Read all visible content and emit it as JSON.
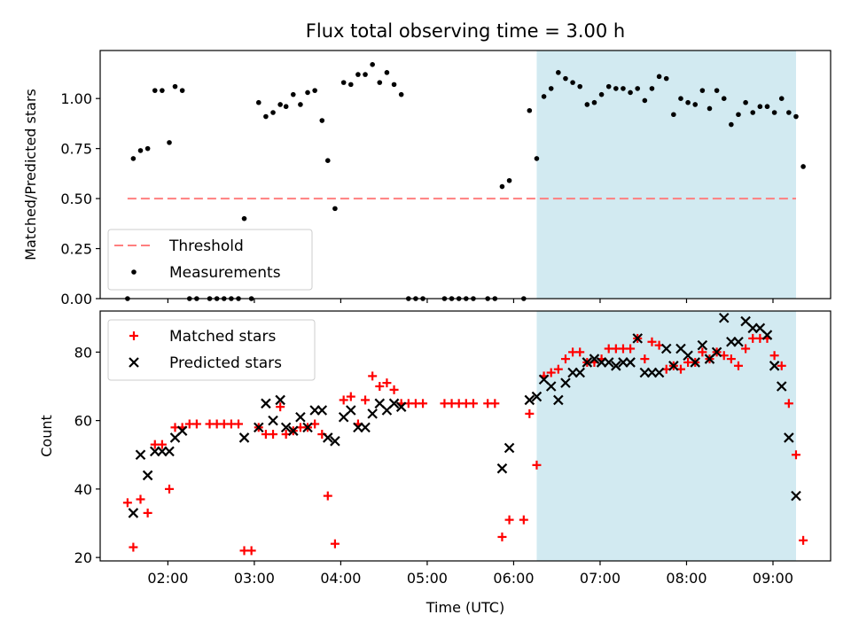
{
  "title": "Flux total observing time = 3.00 h",
  "chart_data": [
    {
      "type": "scatter",
      "ylabel": "Matched/Predicted stars",
      "xlabel": "",
      "xlim": [
        "01:13",
        "09:40"
      ],
      "ylim": [
        0,
        1.24
      ],
      "yticks": [
        0.0,
        0.25,
        0.5,
        0.75,
        1.0
      ],
      "ytick_labels": [
        "0.00",
        "0.25",
        "0.50",
        "0.75",
        "1.00"
      ],
      "shaded_region": {
        "x": [
          "06:16",
          "09:16"
        ],
        "color": "#add8e6"
      },
      "legend": {
        "position": "lower-left",
        "entries": [
          "Threshold",
          "Measurements"
        ]
      },
      "threshold": {
        "name": "Threshold",
        "x": [
          "01:32",
          "09:16"
        ],
        "y": 0.5,
        "color": "#ff8080"
      },
      "series": [
        {
          "name": "Measurements",
          "marker": "dot",
          "color": "#000000",
          "points": [
            [
              "01:32",
              0.0
            ],
            [
              "01:36",
              0.7
            ],
            [
              "01:41",
              0.74
            ],
            [
              "01:46",
              0.75
            ],
            [
              "01:51",
              1.04
            ],
            [
              "01:56",
              1.04
            ],
            [
              "02:01",
              0.78
            ],
            [
              "02:05",
              1.06
            ],
            [
              "02:10",
              1.04
            ],
            [
              "02:15",
              0.0
            ],
            [
              "02:20",
              0.0
            ],
            [
              "02:29",
              0.0
            ],
            [
              "02:34",
              0.0
            ],
            [
              "02:39",
              0.0
            ],
            [
              "02:44",
              0.0
            ],
            [
              "02:49",
              0.0
            ],
            [
              "02:53",
              0.4
            ],
            [
              "02:58",
              0.0
            ],
            [
              "03:03",
              0.98
            ],
            [
              "03:08",
              0.91
            ],
            [
              "03:13",
              0.93
            ],
            [
              "03:18",
              0.97
            ],
            [
              "03:22",
              0.96
            ],
            [
              "03:27",
              1.02
            ],
            [
              "03:32",
              0.97
            ],
            [
              "03:37",
              1.03
            ],
            [
              "03:42",
              1.04
            ],
            [
              "03:47",
              0.89
            ],
            [
              "03:51",
              0.69
            ],
            [
              "03:56",
              0.45
            ],
            [
              "04:02",
              1.08
            ],
            [
              "04:07",
              1.07
            ],
            [
              "04:12",
              1.12
            ],
            [
              "04:17",
              1.12
            ],
            [
              "04:22",
              1.17
            ],
            [
              "04:27",
              1.08
            ],
            [
              "04:32",
              1.13
            ],
            [
              "04:37",
              1.07
            ],
            [
              "04:42",
              1.02
            ],
            [
              "04:47",
              0.0
            ],
            [
              "04:52",
              0.0
            ],
            [
              "04:57",
              0.0
            ],
            [
              "05:12",
              0.0
            ],
            [
              "05:17",
              0.0
            ],
            [
              "05:22",
              0.0
            ],
            [
              "05:27",
              0.0
            ],
            [
              "05:32",
              0.0
            ],
            [
              "05:42",
              0.0
            ],
            [
              "05:47",
              0.0
            ],
            [
              "05:52",
              0.56
            ],
            [
              "05:57",
              0.59
            ],
            [
              "06:07",
              0.0
            ],
            [
              "06:11",
              0.94
            ],
            [
              "06:16",
              0.7
            ],
            [
              "06:21",
              1.01
            ],
            [
              "06:26",
              1.05
            ],
            [
              "06:31",
              1.13
            ],
            [
              "06:36",
              1.1
            ],
            [
              "06:41",
              1.08
            ],
            [
              "06:46",
              1.06
            ],
            [
              "06:51",
              0.97
            ],
            [
              "06:56",
              0.98
            ],
            [
              "07:01",
              1.02
            ],
            [
              "07:06",
              1.06
            ],
            [
              "07:11",
              1.05
            ],
            [
              "07:16",
              1.05
            ],
            [
              "07:21",
              1.03
            ],
            [
              "07:26",
              1.05
            ],
            [
              "07:31",
              0.99
            ],
            [
              "07:36",
              1.05
            ],
            [
              "07:41",
              1.11
            ],
            [
              "07:46",
              1.1
            ],
            [
              "07:51",
              0.92
            ],
            [
              "07:56",
              1.0
            ],
            [
              "08:01",
              0.98
            ],
            [
              "08:06",
              0.97
            ],
            [
              "08:11",
              1.04
            ],
            [
              "08:16",
              0.95
            ],
            [
              "08:21",
              1.04
            ],
            [
              "08:26",
              1.0
            ],
            [
              "08:31",
              0.87
            ],
            [
              "08:36",
              0.92
            ],
            [
              "08:41",
              0.98
            ],
            [
              "08:46",
              0.93
            ],
            [
              "08:51",
              0.96
            ],
            [
              "08:56",
              0.96
            ],
            [
              "09:01",
              0.93
            ],
            [
              "09:06",
              1.0
            ],
            [
              "09:11",
              0.93
            ],
            [
              "09:16",
              0.91
            ],
            [
              "09:21",
              0.66
            ]
          ]
        }
      ]
    },
    {
      "type": "scatter",
      "xlabel": "Time (UTC)",
      "ylabel": "Count",
      "xlim": [
        "01:13",
        "09:40"
      ],
      "ylim": [
        19,
        92
      ],
      "xticks": [
        "02:00",
        "03:00",
        "04:00",
        "05:00",
        "06:00",
        "07:00",
        "08:00",
        "09:00"
      ],
      "yticks": [
        20,
        40,
        60,
        80
      ],
      "ytick_labels": [
        "20",
        "40",
        "60",
        "80"
      ],
      "shaded_region": {
        "x": [
          "06:16",
          "09:16"
        ],
        "color": "#add8e6"
      },
      "legend": {
        "position": "upper-left",
        "entries": [
          "Matched stars",
          "Predicted stars"
        ]
      },
      "series": [
        {
          "name": "Matched stars",
          "marker": "plus",
          "color": "#ff0000",
          "points": [
            [
              "01:32",
              36
            ],
            [
              "01:36",
              23
            ],
            [
              "01:41",
              37
            ],
            [
              "01:46",
              33
            ],
            [
              "01:51",
              53
            ],
            [
              "01:56",
              53
            ],
            [
              "02:01",
              40
            ],
            [
              "02:05",
              58
            ],
            [
              "02:10",
              58
            ],
            [
              "02:15",
              59
            ],
            [
              "02:20",
              59
            ],
            [
              "02:29",
              59
            ],
            [
              "02:34",
              59
            ],
            [
              "02:39",
              59
            ],
            [
              "02:44",
              59
            ],
            [
              "02:49",
              59
            ],
            [
              "02:53",
              22
            ],
            [
              "02:58",
              22
            ],
            [
              "03:03",
              58
            ],
            [
              "03:08",
              56
            ],
            [
              "03:13",
              56
            ],
            [
              "03:18",
              64
            ],
            [
              "03:22",
              56
            ],
            [
              "03:27",
              57
            ],
            [
              "03:32",
              58
            ],
            [
              "03:37",
              58
            ],
            [
              "03:42",
              59
            ],
            [
              "03:47",
              56
            ],
            [
              "03:51",
              38
            ],
            [
              "03:56",
              24
            ],
            [
              "04:02",
              66
            ],
            [
              "04:07",
              67
            ],
            [
              "04:12",
              59
            ],
            [
              "04:17",
              66
            ],
            [
              "04:22",
              73
            ],
            [
              "04:27",
              70
            ],
            [
              "04:32",
              71
            ],
            [
              "04:37",
              69
            ],
            [
              "04:42",
              65
            ],
            [
              "04:47",
              65
            ],
            [
              "04:52",
              65
            ],
            [
              "04:57",
              65
            ],
            [
              "05:12",
              65
            ],
            [
              "05:17",
              65
            ],
            [
              "05:22",
              65
            ],
            [
              "05:27",
              65
            ],
            [
              "05:32",
              65
            ],
            [
              "05:42",
              65
            ],
            [
              "05:47",
              65
            ],
            [
              "05:52",
              26
            ],
            [
              "05:57",
              31
            ],
            [
              "06:07",
              31
            ],
            [
              "06:11",
              62
            ],
            [
              "06:16",
              47
            ],
            [
              "06:21",
              73
            ],
            [
              "06:26",
              74
            ],
            [
              "06:31",
              75
            ],
            [
              "06:36",
              78
            ],
            [
              "06:41",
              80
            ],
            [
              "06:46",
              80
            ],
            [
              "06:51",
              77
            ],
            [
              "06:56",
              77
            ],
            [
              "07:01",
              78
            ],
            [
              "07:06",
              81
            ],
            [
              "07:11",
              81
            ],
            [
              "07:16",
              81
            ],
            [
              "07:21",
              81
            ],
            [
              "07:26",
              84
            ],
            [
              "07:31",
              78
            ],
            [
              "07:36",
              83
            ],
            [
              "07:41",
              82
            ],
            [
              "07:46",
              75
            ],
            [
              "07:51",
              76
            ],
            [
              "07:56",
              75
            ],
            [
              "08:01",
              77
            ],
            [
              "08:06",
              77
            ],
            [
              "08:11",
              80
            ],
            [
              "08:16",
              78
            ],
            [
              "08:21",
              80
            ],
            [
              "08:26",
              79
            ],
            [
              "08:31",
              78
            ],
            [
              "08:36",
              76
            ],
            [
              "08:41",
              81
            ],
            [
              "08:46",
              84
            ],
            [
              "08:51",
              84
            ],
            [
              "08:56",
              84
            ],
            [
              "09:01",
              79
            ],
            [
              "09:06",
              76
            ],
            [
              "09:11",
              65
            ],
            [
              "09:16",
              50
            ],
            [
              "09:21",
              25
            ]
          ]
        },
        {
          "name": "Predicted stars",
          "marker": "x",
          "color": "#000000",
          "points": [
            [
              "01:36",
              33
            ],
            [
              "01:41",
              50
            ],
            [
              "01:46",
              44
            ],
            [
              "01:51",
              51
            ],
            [
              "01:56",
              51
            ],
            [
              "02:01",
              51
            ],
            [
              "02:05",
              55
            ],
            [
              "02:10",
              57
            ],
            [
              "02:53",
              55
            ],
            [
              "03:03",
              58
            ],
            [
              "03:08",
              65
            ],
            [
              "03:13",
              60
            ],
            [
              "03:18",
              66
            ],
            [
              "03:22",
              58
            ],
            [
              "03:27",
              57
            ],
            [
              "03:32",
              61
            ],
            [
              "03:37",
              58
            ],
            [
              "03:42",
              63
            ],
            [
              "03:47",
              63
            ],
            [
              "03:51",
              55
            ],
            [
              "03:56",
              54
            ],
            [
              "04:02",
              61
            ],
            [
              "04:07",
              63
            ],
            [
              "04:12",
              58
            ],
            [
              "04:17",
              58
            ],
            [
              "04:22",
              62
            ],
            [
              "04:27",
              65
            ],
            [
              "04:32",
              63
            ],
            [
              "04:37",
              65
            ],
            [
              "04:42",
              64
            ],
            [
              "05:52",
              46
            ],
            [
              "05:57",
              52
            ],
            [
              "06:11",
              66
            ],
            [
              "06:16",
              67
            ],
            [
              "06:21",
              72
            ],
            [
              "06:26",
              70
            ],
            [
              "06:31",
              66
            ],
            [
              "06:36",
              71
            ],
            [
              "06:41",
              74
            ],
            [
              "06:46",
              74
            ],
            [
              "06:51",
              77
            ],
            [
              "06:56",
              78
            ],
            [
              "07:01",
              77
            ],
            [
              "07:06",
              77
            ],
            [
              "07:11",
              76
            ],
            [
              "07:16",
              77
            ],
            [
              "07:21",
              77
            ],
            [
              "07:26",
              84
            ],
            [
              "07:31",
              74
            ],
            [
              "07:36",
              74
            ],
            [
              "07:41",
              74
            ],
            [
              "07:46",
              81
            ],
            [
              "07:51",
              76
            ],
            [
              "07:56",
              81
            ],
            [
              "08:01",
              79
            ],
            [
              "08:06",
              77
            ],
            [
              "08:11",
              82
            ],
            [
              "08:16",
              78
            ],
            [
              "08:21",
              80
            ],
            [
              "08:26",
              90
            ],
            [
              "08:31",
              83
            ],
            [
              "08:36",
              83
            ],
            [
              "08:41",
              89
            ],
            [
              "08:46",
              87
            ],
            [
              "08:51",
              87
            ],
            [
              "08:56",
              85
            ],
            [
              "09:01",
              76
            ],
            [
              "09:06",
              70
            ],
            [
              "09:11",
              55
            ],
            [
              "09:16",
              38
            ]
          ]
        }
      ]
    }
  ]
}
